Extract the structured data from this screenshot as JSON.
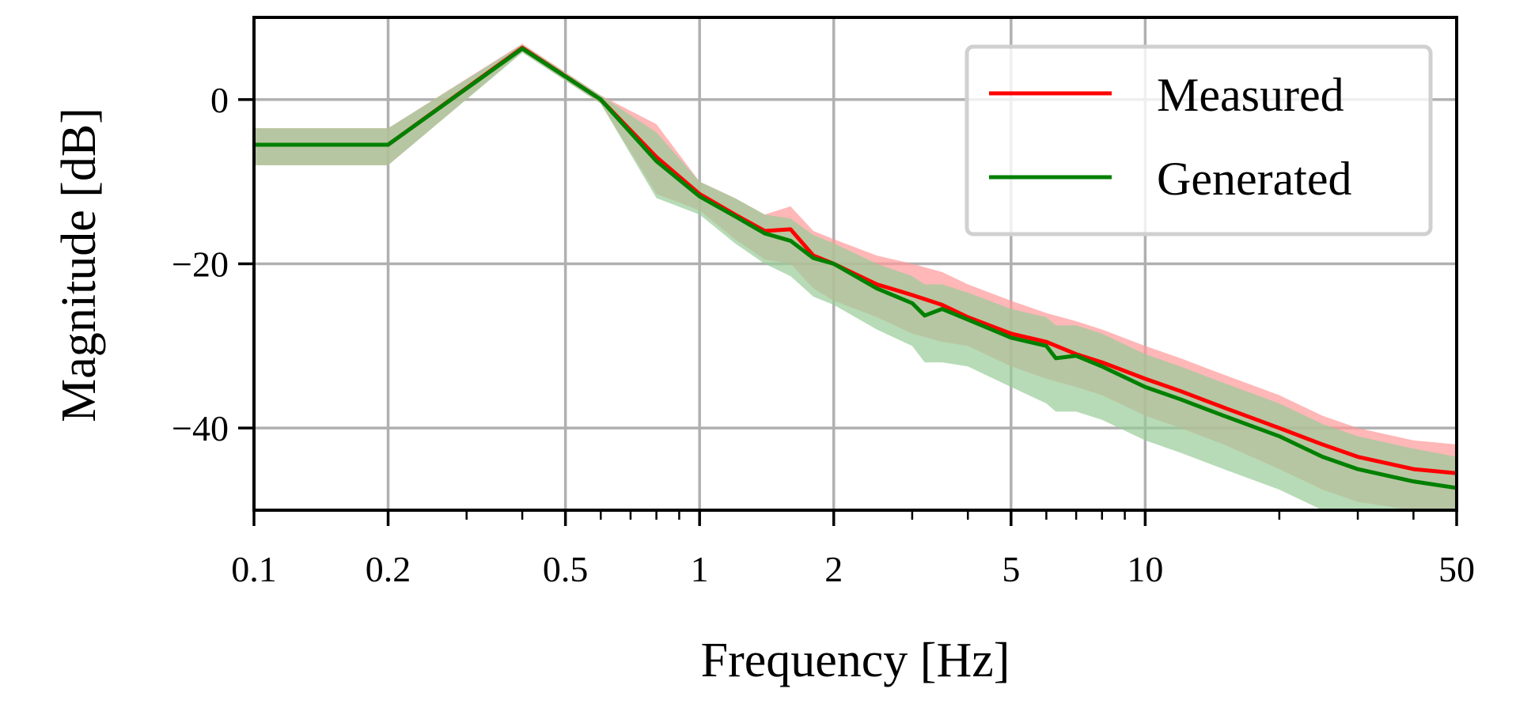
{
  "chart_data": {
    "type": "line",
    "xlabel": "Frequency [Hz]",
    "ylabel": "Magnitude [dB]",
    "xscale": "log",
    "xlim": [
      0.1,
      50
    ],
    "ylim": [
      -50,
      10
    ],
    "grid": true,
    "legend_position": "top-right",
    "x_ticks": [
      0.1,
      0.2,
      0.5,
      1,
      2,
      5,
      10,
      50
    ],
    "x_tick_labels": [
      "0.1",
      "0.2",
      "0.5",
      "1",
      "2",
      "5",
      "10",
      "50"
    ],
    "y_ticks": [
      0,
      -20,
      -40
    ],
    "y_tick_labels": [
      "0",
      "−20",
      "−40"
    ],
    "series": [
      {
        "name": "Measured",
        "color": "#ff0000",
        "band_color": "#ff9999",
        "x": [
          0.1,
          0.2,
          0.4,
          0.6,
          0.8,
          1.0,
          1.2,
          1.4,
          1.6,
          1.8,
          2.0,
          2.5,
          3.0,
          3.5,
          4.0,
          5.0,
          6.0,
          7.0,
          8.0,
          10,
          12,
          15,
          20,
          25,
          30,
          40,
          50
        ],
        "y": [
          -5.5,
          -5.5,
          6.3,
          0,
          -7,
          -11.5,
          -14,
          -16,
          -15.8,
          -19,
          -20,
          -22.5,
          -23.8,
          -25,
          -26.5,
          -28.5,
          -29.5,
          -31,
          -32,
          -34,
          -35.5,
          -37.5,
          -40,
          -42,
          -43.5,
          -45,
          -45.5
        ],
        "lower": [
          -8,
          -8,
          5.8,
          -0.5,
          -11.5,
          -13.5,
          -17,
          -19.5,
          -20,
          -23,
          -24.5,
          -26.5,
          -28.5,
          -29.5,
          -30,
          -32.5,
          -34,
          -35,
          -36,
          -38.5,
          -40,
          -42,
          -45,
          -47.5,
          -49,
          -50,
          -50
        ],
        "upper": [
          -3.5,
          -3.5,
          6.8,
          0.5,
          -3,
          -10,
          -12,
          -14,
          -13,
          -16,
          -17,
          -19,
          -20,
          -21,
          -22.5,
          -24.5,
          -26,
          -27,
          -28,
          -30,
          -31.5,
          -33.5,
          -36,
          -38.5,
          -40,
          -41.5,
          -42
        ]
      },
      {
        "name": "Generated",
        "color": "#008000",
        "band_color": "#99cc99",
        "x": [
          0.1,
          0.2,
          0.4,
          0.6,
          0.8,
          1.0,
          1.2,
          1.4,
          1.6,
          1.8,
          2.0,
          2.5,
          3.0,
          3.2,
          3.5,
          4.0,
          5.0,
          6.0,
          6.3,
          7.0,
          8.0,
          10,
          12,
          15,
          20,
          25,
          30,
          40,
          50
        ],
        "y": [
          -5.5,
          -5.5,
          6.2,
          0,
          -7.5,
          -11.8,
          -14.2,
          -16.3,
          -17.2,
          -19.3,
          -20,
          -23,
          -24.8,
          -26.3,
          -25.5,
          -26.8,
          -29,
          -30,
          -31.5,
          -31.2,
          -32.5,
          -35,
          -36.5,
          -38.5,
          -41,
          -43.5,
          -45,
          -46.5,
          -47.3
        ],
        "lower": [
          -8,
          -8,
          5.7,
          -0.5,
          -12,
          -14,
          -17.5,
          -20,
          -21.5,
          -24,
          -25,
          -28,
          -30,
          -32,
          -32,
          -32.5,
          -35,
          -37,
          -38,
          -38,
          -39,
          -41.5,
          -43,
          -45,
          -47.5,
          -50,
          -50,
          -50,
          -50
        ],
        "upper": [
          -3.5,
          -3.5,
          6.7,
          0.5,
          -4,
          -10,
          -12,
          -14,
          -14.5,
          -16.5,
          -17.5,
          -20,
          -21.5,
          -22.5,
          -22.5,
          -23.5,
          -25.5,
          -26.5,
          -27.5,
          -27.5,
          -28.5,
          -31,
          -32.5,
          -34.5,
          -37,
          -39.5,
          -41,
          -42.5,
          -43.5
        ]
      }
    ]
  }
}
